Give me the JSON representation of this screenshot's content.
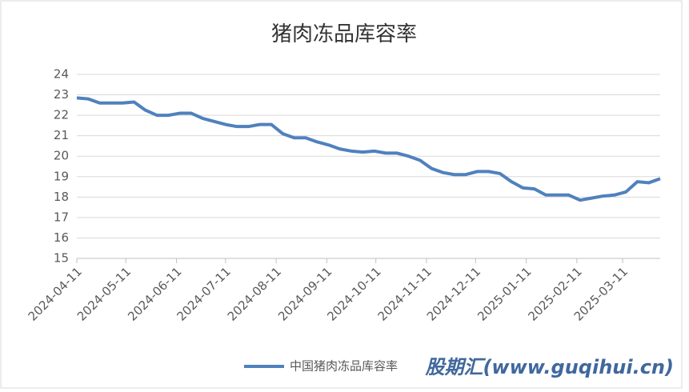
{
  "chart_data": {
    "type": "line",
    "title": "猪肉冻品库容率",
    "x": [
      "2024-04-11",
      "2024-04-18",
      "2024-04-25",
      "2024-05-02",
      "2024-05-09",
      "2024-05-16",
      "2024-05-23",
      "2024-05-30",
      "2024-06-06",
      "2024-06-13",
      "2024-06-20",
      "2024-06-27",
      "2024-07-04",
      "2024-07-11",
      "2024-07-18",
      "2024-07-25",
      "2024-08-01",
      "2024-08-08",
      "2024-08-15",
      "2024-08-22",
      "2024-08-29",
      "2024-09-05",
      "2024-09-12",
      "2024-09-19",
      "2024-09-26",
      "2024-10-03",
      "2024-10-10",
      "2024-10-17",
      "2024-10-24",
      "2024-10-31",
      "2024-11-07",
      "2024-11-14",
      "2024-11-21",
      "2024-11-28",
      "2024-12-05",
      "2024-12-12",
      "2024-12-19",
      "2024-12-26",
      "2025-01-02",
      "2025-01-09",
      "2025-01-16",
      "2025-01-23",
      "2025-01-30",
      "2025-02-06",
      "2025-02-13",
      "2025-02-20",
      "2025-02-27",
      "2025-03-06",
      "2025-03-13",
      "2025-03-20",
      "2025-03-27",
      "2025-04-03"
    ],
    "series": [
      {
        "name": "中国猪肉冻品库容率",
        "color": "#4f81bd",
        "values": [
          22.85,
          22.8,
          22.6,
          22.6,
          22.6,
          22.65,
          22.25,
          22.0,
          22.0,
          22.1,
          22.1,
          21.85,
          21.7,
          21.55,
          21.45,
          21.45,
          21.55,
          21.55,
          21.1,
          20.9,
          20.9,
          20.7,
          20.55,
          20.35,
          20.25,
          20.2,
          20.25,
          20.15,
          20.15,
          20.0,
          19.8,
          19.4,
          19.2,
          19.1,
          19.1,
          19.25,
          19.25,
          19.15,
          18.75,
          18.45,
          18.4,
          18.1,
          18.1,
          18.1,
          17.85,
          17.95,
          18.05,
          18.1,
          18.25,
          18.75,
          18.7,
          18.9
        ]
      }
    ],
    "xlim": [
      "2024-04-11",
      "2025-04-03"
    ],
    "xticks": [
      "2024-04-11",
      "2024-05-11",
      "2024-06-11",
      "2024-07-11",
      "2024-08-11",
      "2024-09-11",
      "2024-10-11",
      "2024-11-11",
      "2024-12-11",
      "2025-01-11",
      "2025-02-11",
      "2025-03-11"
    ],
    "ylim": [
      15,
      24
    ],
    "yticks": [
      15,
      16,
      17,
      18,
      19,
      20,
      21,
      22,
      23,
      24
    ],
    "grid": true,
    "legend": "bottom",
    "watermark": "股期汇(www.guqihui.cn)"
  }
}
